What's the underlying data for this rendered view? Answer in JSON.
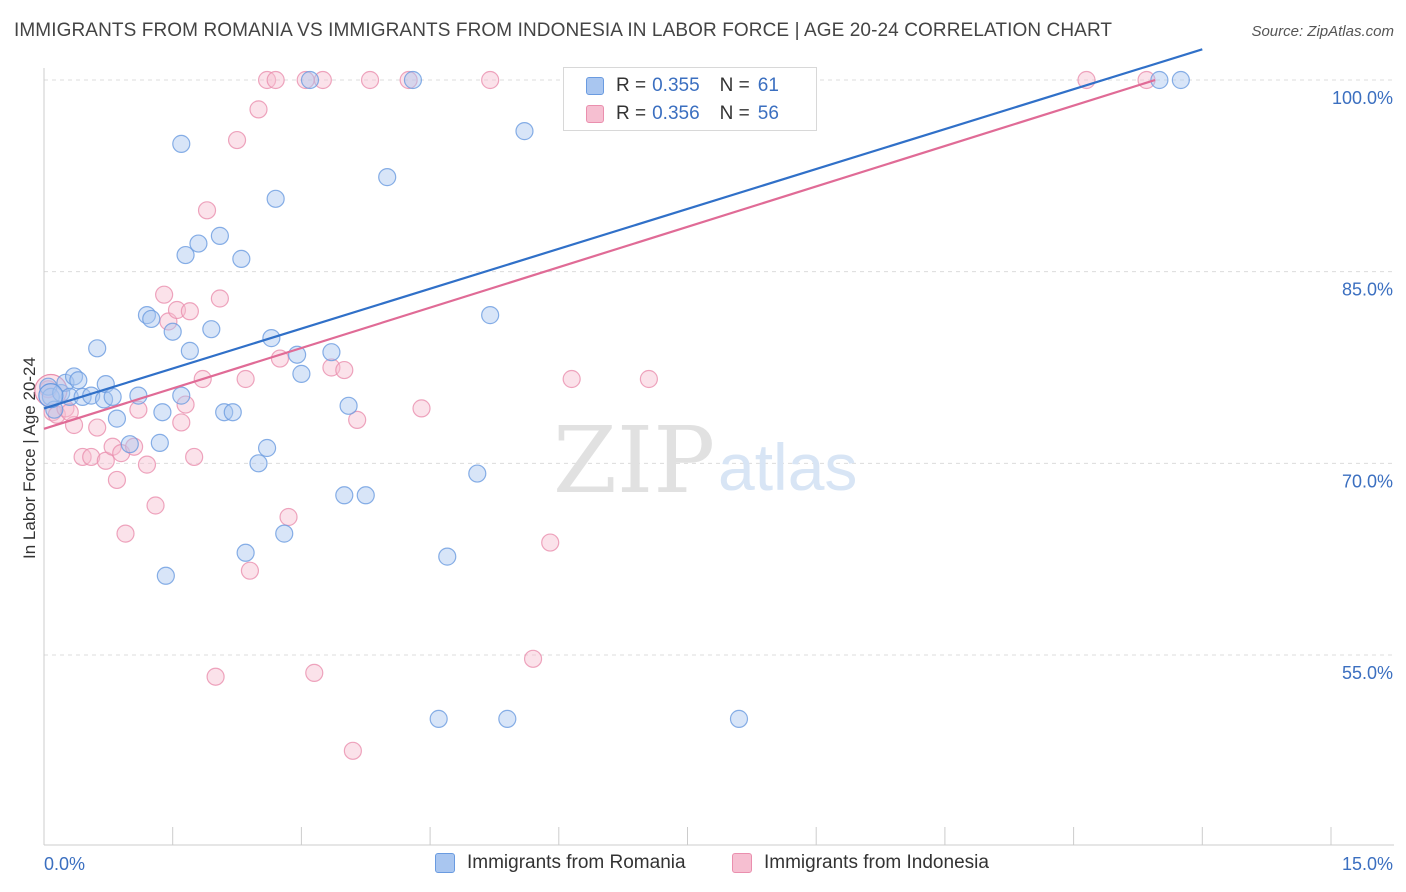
{
  "title": "IMMIGRANTS FROM ROMANIA VS IMMIGRANTS FROM INDONESIA IN LABOR FORCE | AGE 20-24 CORRELATION CHART",
  "source": "Source: ZipAtlas.com",
  "colors": {
    "romania": "#6a9be0",
    "romania_fill": "#a9c6f0",
    "romania_line": "#3070c8",
    "indonesia": "#ea8fae",
    "indonesia_fill": "#f6bfd1",
    "indonesia_line": "#e06b96",
    "value_text": "#3b6fc0"
  },
  "legend": {
    "romania": {
      "r_label": "R =",
      "r_value": "0.355",
      "n_label": "N =",
      "n_value": "61"
    },
    "indonesia": {
      "r_label": "R =",
      "r_value": "0.356",
      "n_label": "N =",
      "n_value": "56"
    }
  },
  "watermark": {
    "zip": "ZIP",
    "atlas": "atlas"
  },
  "chart_data": {
    "type": "scatter",
    "title": "IMMIGRANTS FROM ROMANIA VS IMMIGRANTS FROM INDONESIA IN LABOR FORCE | AGE 20-24 CORRELATION CHART",
    "xlabel": "",
    "ylabel": "In Labor Force | Age 20-24",
    "xlim": [
      0,
      15
    ],
    "ylim": [
      40,
      102.4
    ],
    "x_tick_labels": [
      "0.0%",
      "15.0%"
    ],
    "y_ticks": [
      55,
      70,
      85,
      100
    ],
    "y_tick_labels": [
      "55.0%",
      "70.0%",
      "85.0%",
      "100.0%"
    ],
    "grid": "horizontal dashed",
    "legend_position": "top-center",
    "series": [
      {
        "name": "Immigrants from Romania",
        "color": "#6a9be0",
        "trend": {
          "x": [
            0,
            13.5
          ],
          "y": [
            74.3,
            102.4
          ]
        },
        "points": [
          [
            0.05,
            76.0
          ],
          [
            0.08,
            75.2
          ],
          [
            0.12,
            74.2
          ],
          [
            0.2,
            75.5
          ],
          [
            0.25,
            76.3
          ],
          [
            0.3,
            75.2
          ],
          [
            0.35,
            76.8
          ],
          [
            0.4,
            76.5
          ],
          [
            0.45,
            75.2
          ],
          [
            0.55,
            75.3
          ],
          [
            0.62,
            79.0
          ],
          [
            0.7,
            75.0
          ],
          [
            0.72,
            76.2
          ],
          [
            0.8,
            75.2
          ],
          [
            0.85,
            73.5
          ],
          [
            1.0,
            71.5
          ],
          [
            1.1,
            75.3
          ],
          [
            1.2,
            81.6
          ],
          [
            1.25,
            81.3
          ],
          [
            1.35,
            71.6
          ],
          [
            1.38,
            74.0
          ],
          [
            1.42,
            61.2
          ],
          [
            1.5,
            80.3
          ],
          [
            1.6,
            75.3
          ],
          [
            1.65,
            86.3
          ],
          [
            1.7,
            78.8
          ],
          [
            1.8,
            87.2
          ],
          [
            1.95,
            80.5
          ],
          [
            2.05,
            87.8
          ],
          [
            2.1,
            74.0
          ],
          [
            2.2,
            74.0
          ],
          [
            2.3,
            86.0
          ],
          [
            2.35,
            63.0
          ],
          [
            2.5,
            70.0
          ],
          [
            2.6,
            71.2
          ],
          [
            2.65,
            79.8
          ],
          [
            2.7,
            90.7
          ],
          [
            2.8,
            64.5
          ],
          [
            2.95,
            78.5
          ],
          [
            3.0,
            77.0
          ],
          [
            3.1,
            100.0
          ],
          [
            3.35,
            78.7
          ],
          [
            3.5,
            67.5
          ],
          [
            3.55,
            74.5
          ],
          [
            3.75,
            67.5
          ],
          [
            4.0,
            92.4
          ],
          [
            4.3,
            100.0
          ],
          [
            4.6,
            50.0
          ],
          [
            4.7,
            62.7
          ],
          [
            5.05,
            69.2
          ],
          [
            5.2,
            81.6
          ],
          [
            5.4,
            50.0
          ],
          [
            5.6,
            96.0
          ],
          [
            6.3,
            100.0
          ],
          [
            6.55,
            100.0
          ],
          [
            7.5,
            100.0
          ],
          [
            7.85,
            100.0
          ],
          [
            8.1,
            50.0
          ],
          [
            13.0,
            100.0
          ],
          [
            13.25,
            100.0
          ],
          [
            1.6,
            95.0
          ]
        ]
      },
      {
        "name": "Immigrants from Indonesia",
        "color": "#ea8fae",
        "trend": {
          "x": [
            0,
            12.95
          ],
          "y": [
            72.7,
            100.0
          ]
        },
        "points": [
          [
            0.05,
            75.8
          ],
          [
            0.1,
            74.0
          ],
          [
            0.15,
            73.8
          ],
          [
            0.25,
            74.3
          ],
          [
            0.35,
            73.0
          ],
          [
            0.45,
            70.5
          ],
          [
            0.55,
            70.5
          ],
          [
            0.62,
            72.8
          ],
          [
            0.72,
            70.2
          ],
          [
            0.8,
            71.3
          ],
          [
            0.85,
            68.7
          ],
          [
            0.9,
            70.8
          ],
          [
            0.95,
            64.5
          ],
          [
            1.05,
            71.3
          ],
          [
            1.1,
            74.2
          ],
          [
            1.2,
            69.9
          ],
          [
            1.3,
            66.7
          ],
          [
            1.4,
            83.2
          ],
          [
            1.45,
            81.1
          ],
          [
            1.55,
            82.0
          ],
          [
            1.6,
            73.2
          ],
          [
            1.65,
            74.6
          ],
          [
            1.7,
            81.9
          ],
          [
            1.75,
            70.5
          ],
          [
            1.85,
            76.6
          ],
          [
            1.9,
            89.8
          ],
          [
            2.0,
            53.3
          ],
          [
            2.05,
            82.9
          ],
          [
            2.25,
            95.3
          ],
          [
            2.35,
            76.6
          ],
          [
            2.4,
            61.6
          ],
          [
            2.5,
            97.7
          ],
          [
            2.6,
            100.0
          ],
          [
            2.7,
            100.0
          ],
          [
            2.75,
            78.2
          ],
          [
            2.85,
            65.8
          ],
          [
            3.05,
            100.0
          ],
          [
            3.15,
            53.6
          ],
          [
            3.25,
            100.0
          ],
          [
            3.35,
            77.5
          ],
          [
            3.5,
            77.3
          ],
          [
            3.6,
            47.5
          ],
          [
            3.65,
            73.4
          ],
          [
            4.25,
            100.0
          ],
          [
            4.4,
            74.3
          ],
          [
            5.2,
            100.0
          ],
          [
            5.7,
            54.7
          ],
          [
            5.9,
            63.8
          ],
          [
            6.15,
            76.6
          ],
          [
            7.05,
            76.6
          ],
          [
            7.45,
            100.0
          ],
          [
            7.8,
            100.0
          ],
          [
            12.15,
            100.0
          ],
          [
            12.85,
            100.0
          ],
          [
            0.3,
            74.0
          ],
          [
            3.8,
            100.0
          ]
        ]
      }
    ]
  },
  "bottom_legend": {
    "romania_label": "Immigrants from Romania",
    "indonesia_label": "Immigrants from Indonesia"
  }
}
